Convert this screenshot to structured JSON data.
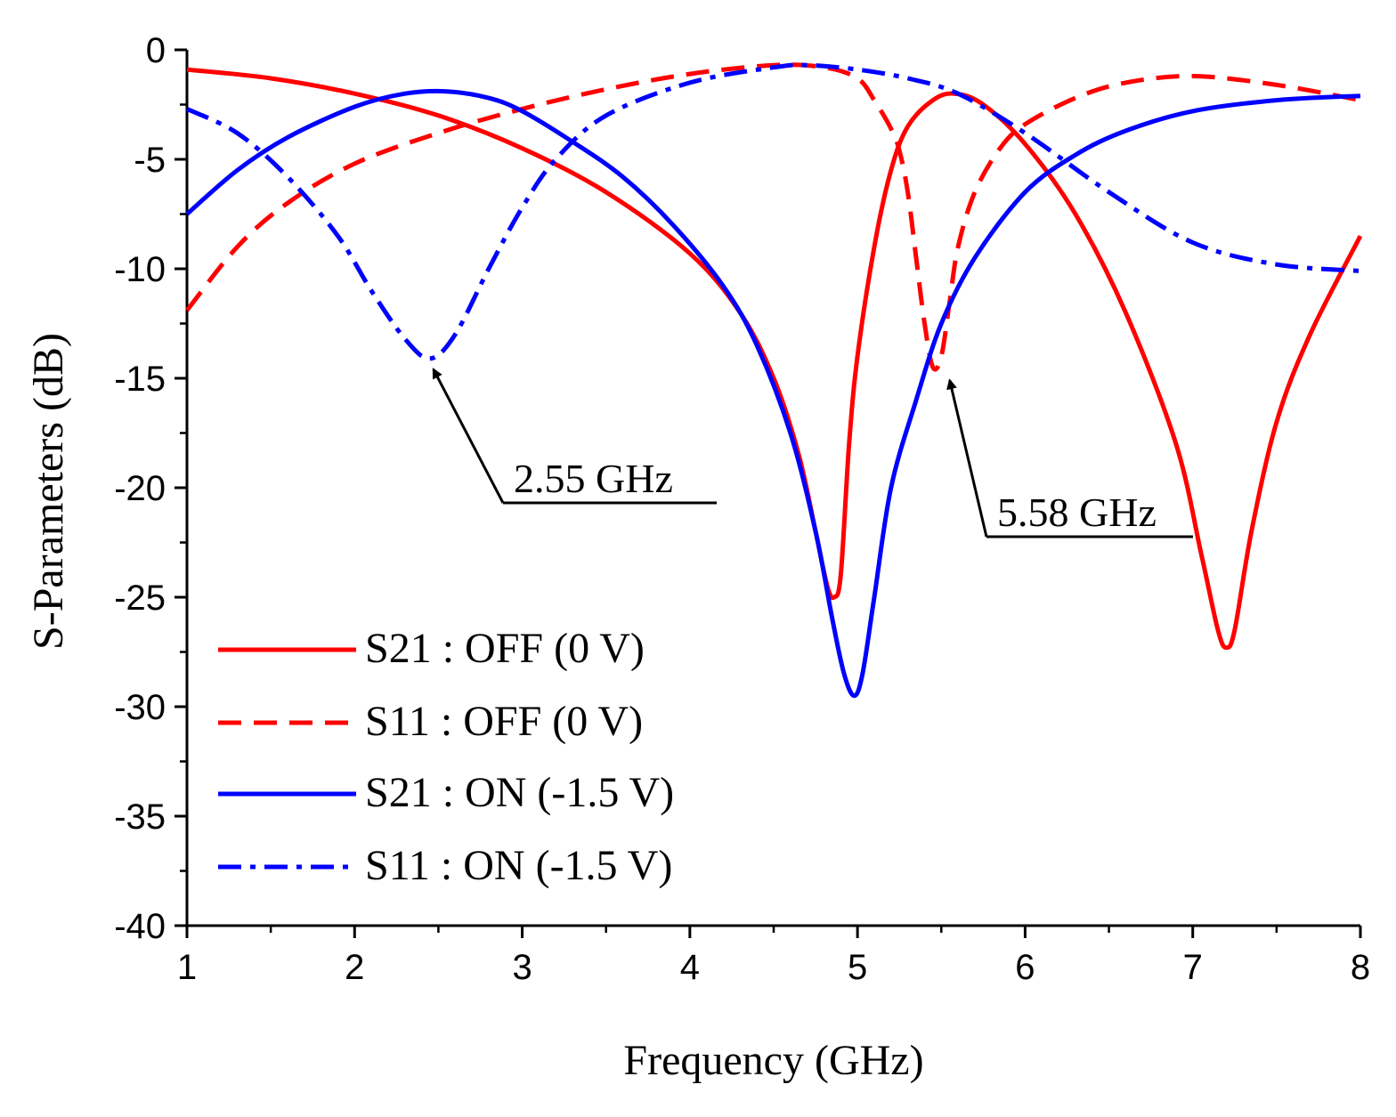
{
  "chart_data": {
    "type": "line",
    "title": "",
    "xlabel": "Frequency (GHz)",
    "ylabel": "S-Parameters (dB)",
    "xlim": [
      1,
      8
    ],
    "ylim": [
      -40,
      0
    ],
    "x_ticks": [
      "1",
      "2",
      "3",
      "4",
      "5",
      "6",
      "7",
      "8"
    ],
    "y_ticks": [
      "0",
      "-5",
      "-10",
      "-15",
      "-20",
      "-25",
      "-30",
      "-35",
      "-40"
    ],
    "grid": false,
    "legend_position": "bottom-left",
    "series": [
      {
        "name": "S21 : OFF (0 V)",
        "color": "#ff0000",
        "dash": "solid",
        "x": [
          1.0,
          1.5,
          2.0,
          2.5,
          3.0,
          3.5,
          4.0,
          4.3,
          4.5,
          4.65,
          4.75,
          4.82,
          4.86,
          4.9,
          4.95,
          5.0,
          5.1,
          5.2,
          5.3,
          5.45,
          5.58,
          5.75,
          6.0,
          6.3,
          6.6,
          6.9,
          7.05,
          7.15,
          7.2,
          7.25,
          7.35,
          7.5,
          7.7,
          8.0
        ],
        "y": [
          -0.9,
          -1.3,
          -2.0,
          -3.0,
          -4.5,
          -6.5,
          -9.3,
          -12.0,
          -15.0,
          -18.5,
          -22.0,
          -24.5,
          -25.0,
          -24.0,
          -18.0,
          -14.0,
          -9.0,
          -5.5,
          -3.5,
          -2.3,
          -2.0,
          -2.5,
          -4.3,
          -7.5,
          -12.0,
          -18.0,
          -23.0,
          -26.5,
          -27.3,
          -26.5,
          -22.0,
          -17.0,
          -13.0,
          -8.5
        ]
      },
      {
        "name": "S11 : OFF (0 V)",
        "color": "#ff0000",
        "dash": "dashed",
        "x": [
          1.0,
          1.3,
          1.6,
          2.0,
          2.5,
          3.0,
          3.5,
          4.0,
          4.5,
          4.8,
          5.0,
          5.1,
          5.2,
          5.25,
          5.3,
          5.35,
          5.4,
          5.45,
          5.5,
          5.55,
          5.6,
          5.7,
          5.85,
          6.0,
          6.3,
          6.6,
          7.0,
          7.5,
          8.0
        ],
        "y": [
          -11.9,
          -9.0,
          -7.0,
          -5.2,
          -3.8,
          -2.7,
          -1.8,
          -1.1,
          -0.7,
          -0.8,
          -1.3,
          -2.3,
          -3.6,
          -4.6,
          -6.5,
          -9.5,
          -12.5,
          -14.5,
          -14.0,
          -11.5,
          -9.0,
          -6.5,
          -4.5,
          -3.4,
          -2.2,
          -1.5,
          -1.2,
          -1.6,
          -2.3
        ]
      },
      {
        "name": "S21 : ON (-1.5 V)",
        "color": "#0000ff",
        "dash": "solid",
        "x": [
          1.0,
          1.3,
          1.6,
          2.0,
          2.3,
          2.55,
          2.8,
          3.0,
          3.3,
          3.6,
          3.9,
          4.2,
          4.4,
          4.6,
          4.75,
          4.85,
          4.92,
          4.98,
          5.03,
          5.1,
          5.2,
          5.35,
          5.5,
          5.7,
          6.0,
          6.3,
          6.6,
          7.0,
          7.5,
          8.0
        ],
        "y": [
          -7.5,
          -5.5,
          -4.0,
          -2.6,
          -2.0,
          -1.9,
          -2.2,
          -2.8,
          -4.2,
          -5.8,
          -8.0,
          -10.8,
          -13.5,
          -17.5,
          -22.0,
          -26.0,
          -28.5,
          -29.5,
          -28.5,
          -25.0,
          -20.0,
          -16.0,
          -12.5,
          -9.5,
          -6.5,
          -4.8,
          -3.7,
          -2.8,
          -2.3,
          -2.1
        ]
      },
      {
        "name": "S11 : ON (-1.5 V)",
        "color": "#0000ff",
        "dash": "dashdot",
        "x": [
          1.0,
          1.3,
          1.6,
          1.9,
          2.1,
          2.3,
          2.45,
          2.6,
          2.8,
          3.0,
          3.2,
          3.5,
          4.0,
          4.5,
          4.7,
          5.0,
          5.3,
          5.6,
          6.0,
          6.5,
          7.0,
          7.5,
          8.0
        ],
        "y": [
          -2.7,
          -3.8,
          -5.8,
          -8.5,
          -11.0,
          -13.2,
          -14.1,
          -13.0,
          -10.0,
          -7.2,
          -5.0,
          -3.0,
          -1.5,
          -0.8,
          -0.7,
          -0.9,
          -1.3,
          -2.0,
          -3.8,
          -6.5,
          -8.8,
          -9.8,
          -10.1
        ]
      }
    ],
    "annotations": [
      {
        "text": "2.55 GHz",
        "x": 2.47,
        "y": -14.1
      },
      {
        "text": "5.58 GHz",
        "x": 5.55,
        "y": -14.6
      }
    ]
  }
}
